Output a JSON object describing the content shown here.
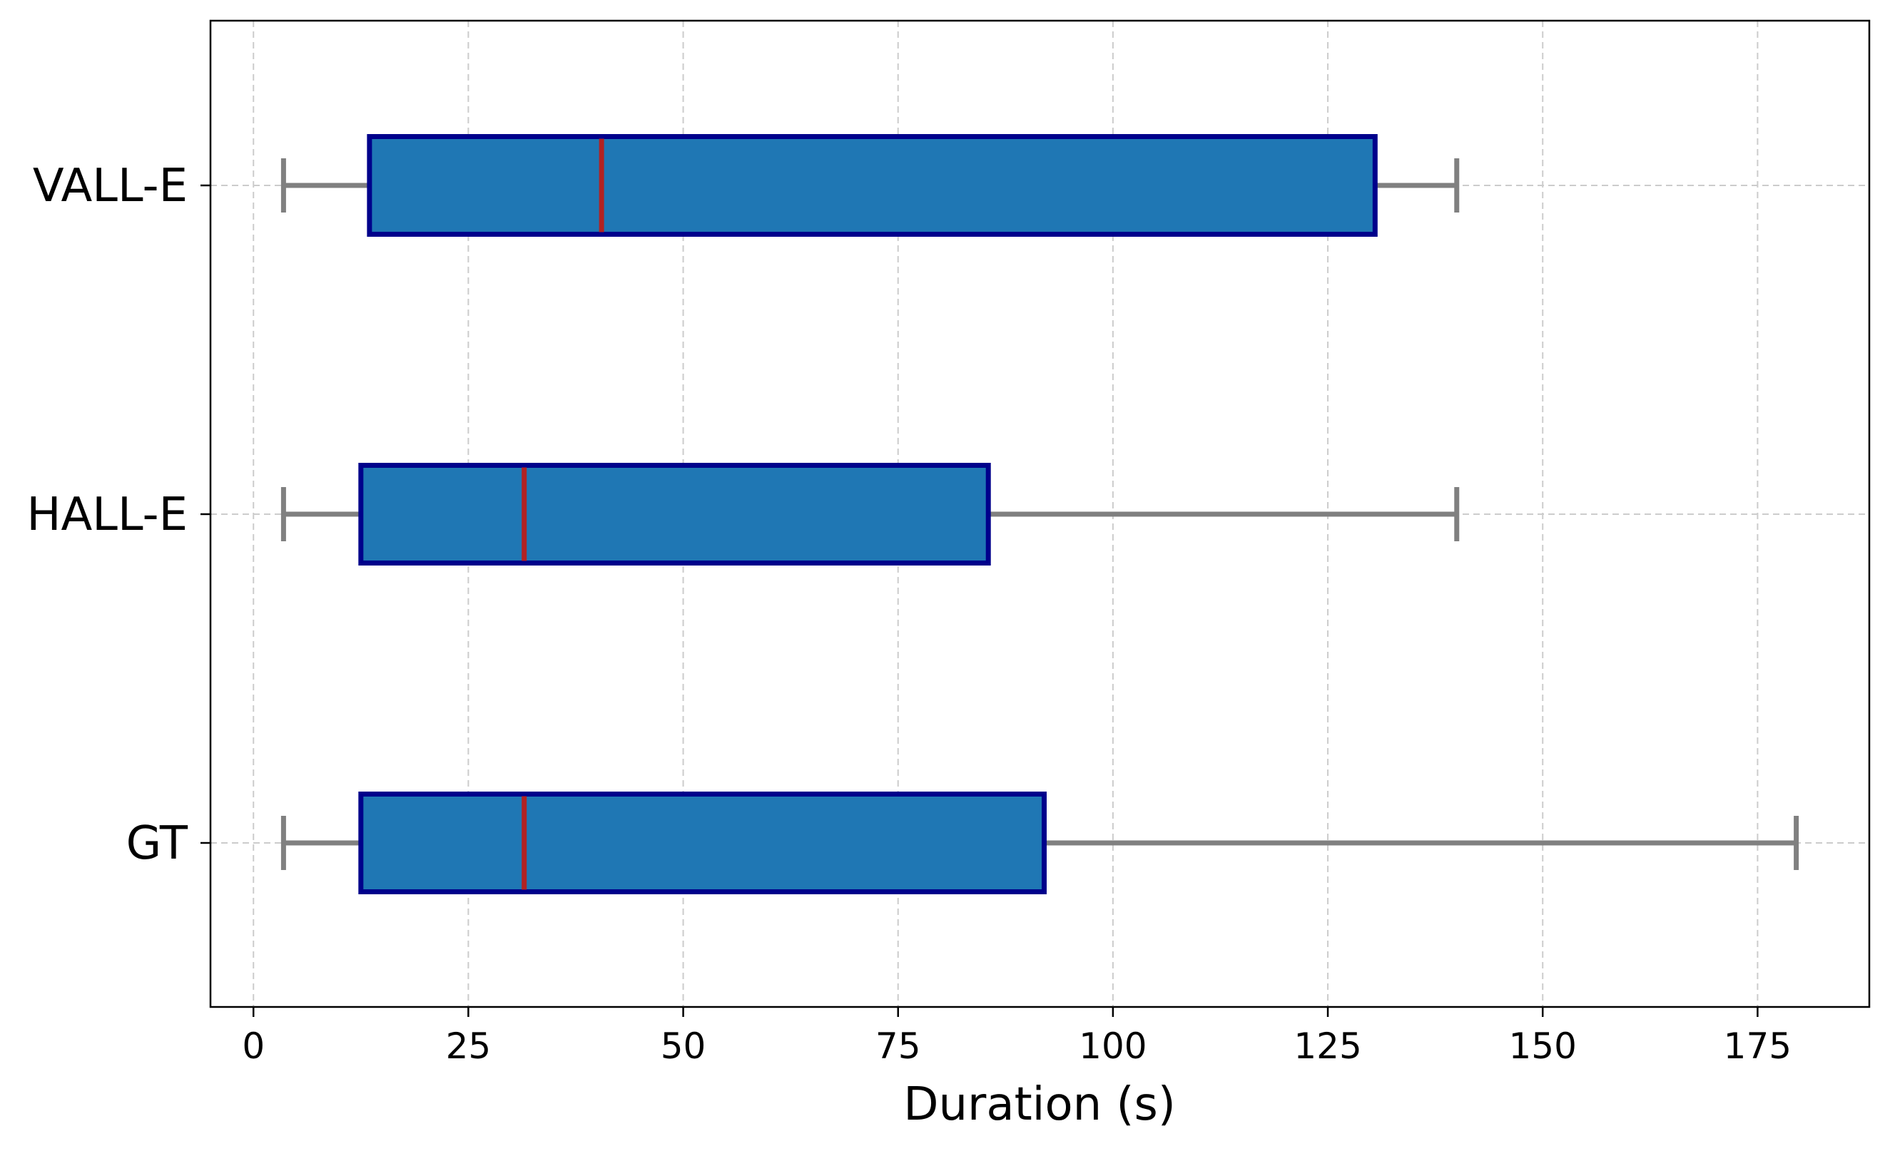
{
  "chart_data": {
    "type": "boxplot",
    "orientation": "horizontal",
    "xlabel": "Duration (s)",
    "xlim": [
      -5,
      188
    ],
    "xticks": [
      0,
      25,
      50,
      75,
      100,
      125,
      150,
      175
    ],
    "grid": true,
    "categories": [
      "GT",
      "HALL-E",
      "VALL-E"
    ],
    "boxes": [
      {
        "label": "GT",
        "whisker_low": 3.5,
        "q1": 12.5,
        "median": 31.5,
        "q3": 92,
        "whisker_high": 179.5
      },
      {
        "label": "HALL-E",
        "whisker_low": 3.5,
        "q1": 12.5,
        "median": 31.5,
        "q3": 85.5,
        "whisker_high": 140
      },
      {
        "label": "VALL-E",
        "whisker_low": 3.5,
        "q1": 13.5,
        "median": 40.5,
        "q3": 130.5,
        "whisker_high": 140
      }
    ],
    "colors": {
      "box_fill": "#1f77b4",
      "box_edge": "#00008b",
      "median": "#b22222",
      "whisker": "#808080",
      "grid": "#cccccc"
    }
  }
}
